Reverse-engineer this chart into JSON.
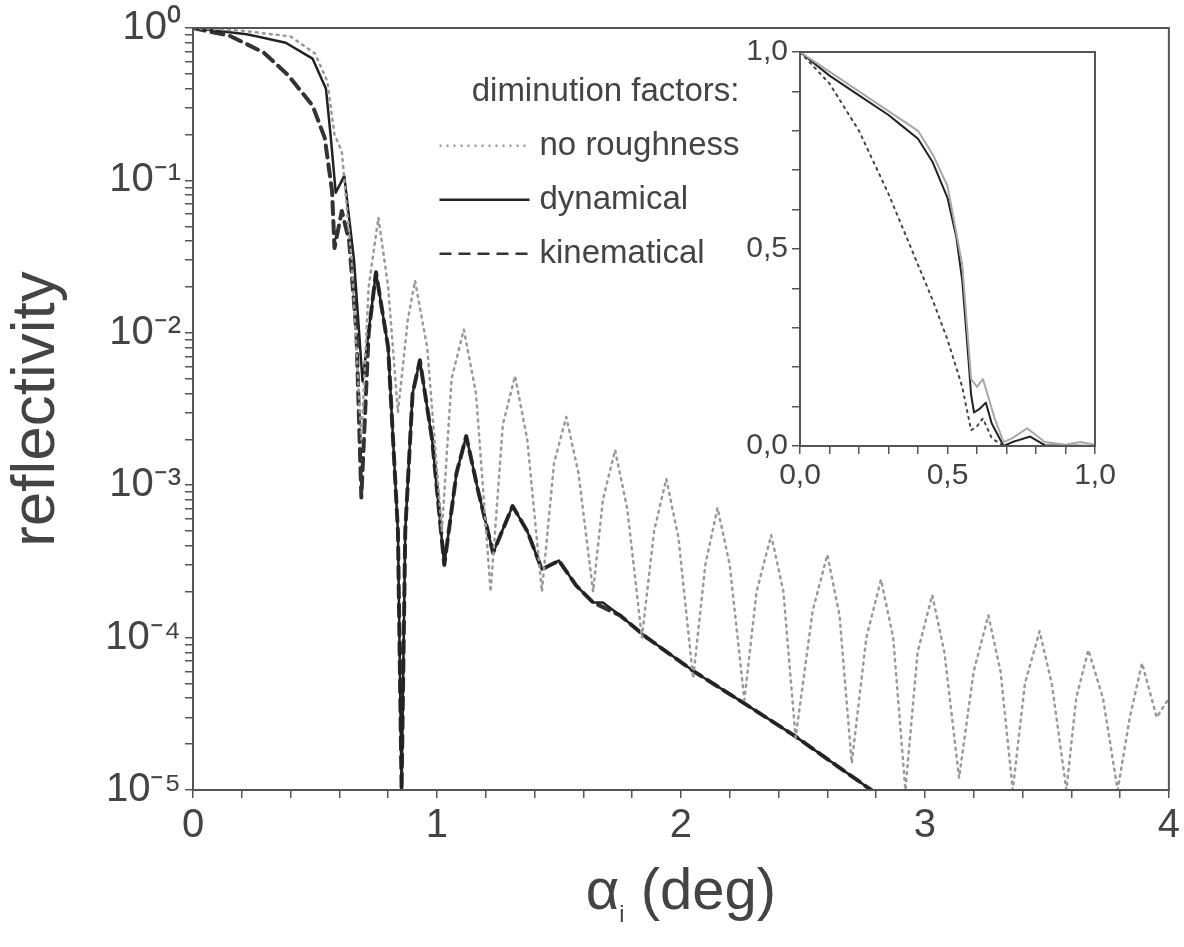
{
  "chart_data": [
    {
      "type": "line",
      "xlabel": "α$_{i}$ (deg)",
      "ylabel": "reflectivity",
      "legend_title": "diminution factors:",
      "legend": "top",
      "log": "y",
      "marker": "none",
      "xlim": [
        0,
        4
      ],
      "ylim": [
        1e-05,
        1
      ],
      "xticks": [
        0,
        {
          "value": 0.2,
          "label": null
        },
        {
          "value": 0.4,
          "label": null
        },
        {
          "value": 0.6,
          "label": null
        },
        {
          "value": 0.8,
          "label": null
        },
        1,
        {
          "value": 1.2,
          "label": null
        },
        {
          "value": 1.4,
          "label": null
        },
        {
          "value": 1.6,
          "label": null
        },
        {
          "value": 1.8,
          "label": null
        },
        2,
        {
          "value": 2.2,
          "label": null
        },
        {
          "value": 2.4,
          "label": null
        },
        {
          "value": 2.6,
          "label": null
        },
        {
          "value": 2.8,
          "label": null
        },
        3,
        {
          "value": 3.2,
          "label": null
        },
        {
          "value": 3.4,
          "label": null
        },
        {
          "value": 3.6,
          "label": null
        },
        {
          "value": 3.8,
          "label": null
        },
        4
      ],
      "yticks": [
        {
          "value": 1e-05,
          "label": "10⁻⁵"
        },
        {
          "value": 2e-05,
          "label": null
        },
        {
          "value": 3e-05,
          "label": null
        },
        {
          "value": 4e-05,
          "label": null
        },
        {
          "value": 5e-05,
          "label": null
        },
        {
          "value": 6e-05,
          "label": null
        },
        {
          "value": 7e-05,
          "label": null
        },
        {
          "value": 8e-05,
          "label": null
        },
        {
          "value": 9e-05,
          "label": null
        },
        {
          "value": 0.0001,
          "label": "10⁻⁴"
        },
        {
          "value": 0.0002,
          "label": null
        },
        {
          "value": 0.0003,
          "label": null
        },
        {
          "value": 0.0004,
          "label": null
        },
        {
          "value": 0.0005,
          "label": null
        },
        {
          "value": 0.0006,
          "label": null
        },
        {
          "value": 0.0007,
          "label": null
        },
        {
          "value": 0.0008,
          "label": null
        },
        {
          "value": 0.0009,
          "label": null
        },
        {
          "value": 0.001,
          "label": "10⁻³"
        },
        {
          "value": 0.002,
          "label": null
        },
        {
          "value": 0.003,
          "label": null
        },
        {
          "value": 0.004,
          "label": null
        },
        {
          "value": 0.005,
          "label": null
        },
        {
          "value": 0.006,
          "label": null
        },
        {
          "value": 0.007,
          "label": null
        },
        {
          "value": 0.008,
          "label": null
        },
        {
          "value": 0.009,
          "label": null
        },
        {
          "value": 0.01,
          "label": "10⁻²"
        },
        {
          "value": 0.02,
          "label": null
        },
        {
          "value": 0.03,
          "label": null
        },
        {
          "value": 0.04,
          "label": null
        },
        {
          "value": 0.05,
          "label": null
        },
        {
          "value": 0.06,
          "label": null
        },
        {
          "value": 0.07,
          "label": null
        },
        {
          "value": 0.08,
          "label": null
        },
        {
          "value": 0.09,
          "label": null
        },
        {
          "value": 0.1,
          "label": "10⁻¹"
        },
        {
          "value": 0.2,
          "label": null
        },
        {
          "value": 0.3,
          "label": null
        },
        {
          "value": 0.4,
          "label": null
        },
        {
          "value": 0.5,
          "label": null
        },
        {
          "value": 0.6,
          "label": null
        },
        {
          "value": 0.7,
          "label": null
        },
        {
          "value": 0.8,
          "label": null
        },
        {
          "value": 0.9,
          "label": null
        },
        {
          "value": 1,
          "label": "10⁰"
        }
      ],
      "series": [
        {
          "name": "no roughness",
          "color": "#9a9a9a",
          "line_style": "dotted",
          "x": [
            0,
            0.2,
            0.4,
            0.5,
            0.55,
            0.58,
            0.61,
            0.65,
            0.69,
            0.72,
            0.76,
            0.8,
            0.84,
            0.88,
            0.91,
            0.96,
            1.02,
            1.06,
            1.11,
            1.16,
            1.22,
            1.27,
            1.32,
            1.37,
            1.43,
            1.48,
            1.53,
            1.58,
            1.64,
            1.68,
            1.73,
            1.78,
            1.84,
            1.89,
            1.94,
            1.99,
            2.05,
            2.1,
            2.15,
            2.2,
            2.26,
            2.31,
            2.37,
            2.42,
            2.47,
            2.54,
            2.6,
            2.65,
            2.7,
            2.76,
            2.82,
            2.87,
            2.92,
            2.97,
            3.03,
            3.08,
            3.14,
            3.2,
            3.26,
            3.31,
            3.36,
            3.41,
            3.47,
            3.52,
            3.58,
            3.62,
            3.67,
            3.73,
            3.79,
            3.84,
            3.89,
            3.95,
            4
          ],
          "values": [
            1,
            0.96,
            0.88,
            0.68,
            0.45,
            0.2,
            0.155,
            0.03,
            0.002,
            0.02,
            0.057,
            0.02,
            0.003,
            0.012,
            0.022,
            0.008,
            0.0005,
            0.005,
            0.0105,
            0.004,
            0.0002,
            0.0025,
            0.0052,
            0.002,
            0.0002,
            0.0014,
            0.0028,
            0.0012,
            0.0002,
            0.0008,
            0.0017,
            0.0007,
            0.0001,
            0.0005,
            0.0011,
            0.00045,
            5.4e-05,
            0.0003,
            0.00071,
            0.0003,
            3.9e-05,
            0.0002,
            0.00047,
            0.0002,
            2.2e-05,
            0.00015,
            0.00035,
            0.00014,
            1.5e-05,
            0.0001,
            0.00024,
            0.0001,
            1e-05,
            8e-05,
            0.00019,
            8e-05,
            1.2e-05,
            6e-05,
            0.00014,
            6e-05,
            1e-05,
            5e-05,
            0.00011,
            5e-05,
            1e-05,
            4e-05,
            8.3e-05,
            4e-05,
            1e-05,
            3e-05,
            6.8e-05,
            3e-05,
            4e-05
          ]
        },
        {
          "name": "dynamical",
          "color": "#222222",
          "line_style": "solid",
          "x": [
            0,
            0.22,
            0.38,
            0.49,
            0.545,
            0.565,
            0.585,
            0.62,
            0.66,
            0.695,
            0.75,
            0.8,
            0.84,
            0.855,
            0.87,
            0.9,
            0.93,
            0.98,
            1.03,
            1.08,
            1.12,
            1.17,
            1.23,
            1.31,
            1.37,
            1.43,
            1.5,
            1.57,
            1.64,
            1.68,
            1.75,
            1.86,
            2.06,
            2.26,
            2.46,
            2.78
          ],
          "values": [
            1,
            0.91,
            0.8,
            0.63,
            0.4,
            0.19,
            0.083,
            0.107,
            0.03,
            0.0048,
            0.025,
            0.008,
            0.0005,
            1e-05,
            0.0005,
            0.004,
            0.0066,
            0.002,
            0.0003,
            0.0012,
            0.0021,
            0.0009,
            0.00036,
            0.00073,
            0.0005,
            0.00028,
            0.00032,
            0.00022,
            0.00017,
            0.00017,
            0.00014,
            0.0001,
            5.9e-05,
            3.7e-05,
            2.3e-05,
            1e-05
          ]
        },
        {
          "name": "kinematical",
          "color": "#333333",
          "line_style": "dashed",
          "x": [
            0,
            0.15,
            0.29,
            0.39,
            0.49,
            0.54,
            0.57,
            0.58,
            0.61,
            0.64,
            0.67,
            0.69,
            0.72,
            0.75,
            0.8,
            0.84,
            0.855,
            0.87,
            0.9,
            0.93,
            0.98,
            1.03,
            1.08,
            1.12,
            1.17,
            1.23,
            1.31,
            1.37,
            1.43,
            1.5,
            1.57,
            1.64,
            1.75,
            1.86,
            2.06,
            2.26,
            2.46,
            2.78
          ],
          "values": [
            1,
            0.89,
            0.69,
            0.49,
            0.31,
            0.19,
            0.085,
            0.036,
            0.063,
            0.04,
            0.01,
            0.00083,
            0.01,
            0.025,
            0.008,
            0.0005,
            1e-05,
            0.0005,
            0.004,
            0.0066,
            0.002,
            0.0003,
            0.0012,
            0.0021,
            0.0009,
            0.00036,
            0.00073,
            0.0005,
            0.00028,
            0.00032,
            0.00022,
            0.00017,
            0.00014,
            0.0001,
            5.9e-05,
            3.7e-05,
            2.3e-05,
            1e-05
          ]
        }
      ]
    },
    {
      "type": "line",
      "marker": "none",
      "xlim": [
        0,
        1
      ],
      "ylim": [
        0,
        1
      ],
      "xticks": [
        {
          "value": 0,
          "label": "0,0"
        },
        {
          "value": 0.1,
          "label": null
        },
        {
          "value": 0.2,
          "label": null
        },
        {
          "value": 0.3,
          "label": null
        },
        {
          "value": 0.4,
          "label": null
        },
        {
          "value": 0.5,
          "label": "0,5"
        },
        {
          "value": 0.6,
          "label": null
        },
        {
          "value": 0.7,
          "label": null
        },
        {
          "value": 0.8,
          "label": null
        },
        {
          "value": 0.9,
          "label": null
        },
        {
          "value": 1,
          "label": "1,0"
        }
      ],
      "yticks": [
        {
          "value": 0,
          "label": "0,0"
        },
        {
          "value": 0.1,
          "label": null
        },
        {
          "value": 0.2,
          "label": null
        },
        {
          "value": 0.3,
          "label": null
        },
        {
          "value": 0.4,
          "label": null
        },
        {
          "value": 0.5,
          "label": "0,5"
        },
        {
          "value": 0.6,
          "label": null
        },
        {
          "value": 0.7,
          "label": null
        },
        {
          "value": 0.8,
          "label": null
        },
        {
          "value": 0.9,
          "label": null
        },
        {
          "value": 1,
          "label": "1,0"
        }
      ],
      "series": [
        {
          "color": "#a8a8a8",
          "line_style": "solid",
          "x": [
            0,
            0.1,
            0.2,
            0.3,
            0.4,
            0.45,
            0.5,
            0.55,
            0.58,
            0.6,
            0.62,
            0.66,
            0.69,
            0.72,
            0.77,
            0.83,
            0.9,
            0.95,
            1
          ],
          "values": [
            1,
            0.95,
            0.9,
            0.85,
            0.8,
            0.74,
            0.66,
            0.46,
            0.17,
            0.15,
            0.17,
            0.07,
            0.01,
            0.02,
            0.045,
            0.01,
            0.003,
            0.01,
            0.003
          ]
        },
        {
          "color": "#222222",
          "line_style": "solid",
          "x": [
            0,
            0.1,
            0.2,
            0.3,
            0.35,
            0.4,
            0.45,
            0.5,
            0.53,
            0.55,
            0.57,
            0.58,
            0.59,
            0.61,
            0.63,
            0.65,
            0.69,
            0.72,
            0.78,
            0.83,
            1
          ],
          "values": [
            1,
            0.94,
            0.89,
            0.84,
            0.81,
            0.78,
            0.72,
            0.63,
            0.53,
            0.42,
            0.23,
            0.13,
            0.085,
            0.095,
            0.11,
            0.057,
            0,
            0.01,
            0.024,
            0.002,
            0
          ]
        },
        {
          "color": "#444444",
          "line_style": "dotted",
          "x": [
            0,
            0.1,
            0.2,
            0.3,
            0.4,
            0.45,
            0.5,
            0.55,
            0.58,
            0.6,
            0.62,
            0.65,
            0.69,
            1
          ],
          "values": [
            1,
            0.92,
            0.8,
            0.64,
            0.46,
            0.37,
            0.27,
            0.15,
            0.04,
            0.05,
            0.07,
            0.02,
            0,
            0
          ]
        }
      ]
    }
  ]
}
